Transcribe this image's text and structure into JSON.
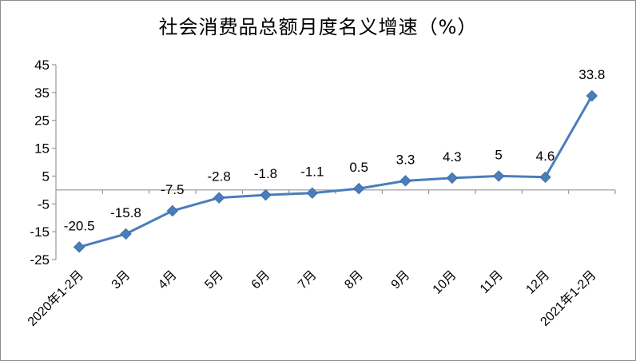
{
  "chart_data": {
    "type": "line",
    "title": "社会消费品总额月度名义增速（%）",
    "categories": [
      "2020年1-2月",
      "3月",
      "4月",
      "5月",
      "6月",
      "7月",
      "8月",
      "9月",
      "10月",
      "11月",
      "12月",
      "2021年1-2月"
    ],
    "series": [
      {
        "values": [
          -20.5,
          -15.8,
          -7.5,
          -2.8,
          -1.8,
          -1.1,
          0.5,
          3.3,
          4.3,
          5,
          4.6,
          33.8
        ]
      }
    ],
    "data_labels": [
      "-20.5",
      "-15.8",
      "-7.5",
      "-2.8",
      "-1.8",
      "-1.1",
      "0.5",
      "3.3",
      "4.3",
      "5",
      "4.6",
      "33.8"
    ],
    "y_ticks": [
      "45",
      "35",
      "25",
      "15",
      "5",
      "-5",
      "-15",
      "-25"
    ],
    "ylim": [
      -25,
      45
    ],
    "grid": false,
    "legend": "none",
    "line_color": "#4a7ebb",
    "marker": "diamond"
  }
}
